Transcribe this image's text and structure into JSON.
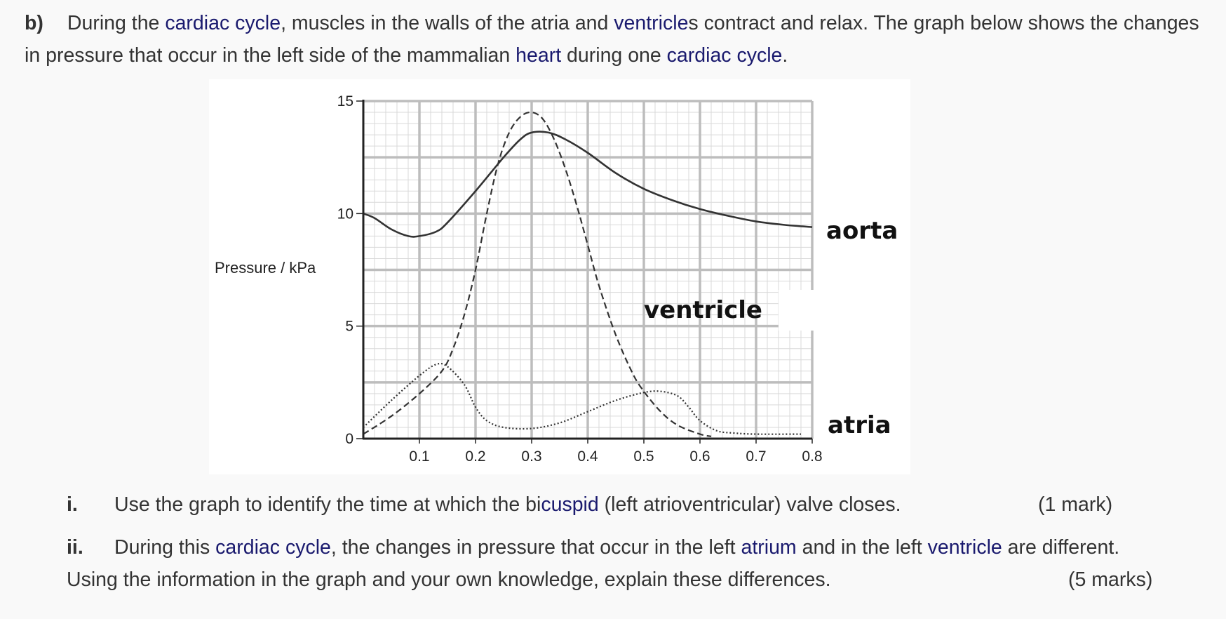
{
  "intro": {
    "label": "b)",
    "p1": "During the ",
    "l1": "cardiac cycle",
    "p2": ", muscles in the walls of the atria and ",
    "l2": "ventricle",
    "p3": "s contract and relax. The graph below shows the changes in pressure that occur in the left side of the mammalian ",
    "l3": "heart",
    "p4": " during one ",
    "l4": "cardiac cycle",
    "p5": "."
  },
  "chart_data": {
    "type": "line",
    "title": "",
    "xlabel": "",
    "ylabel": "Pressure / kPa",
    "xlim": [
      0,
      0.8
    ],
    "ylim": [
      0,
      15
    ],
    "xticks": [
      "0.1",
      "0.2",
      "0.3",
      "0.4",
      "0.5",
      "0.6",
      "0.7",
      "0.8"
    ],
    "yticks": [
      "0",
      "5",
      "10",
      "15"
    ],
    "grid": true,
    "series": [
      {
        "name": "aorta",
        "style": "solid",
        "x": [
          0,
          0.02,
          0.05,
          0.08,
          0.1,
          0.13,
          0.15,
          0.2,
          0.25,
          0.28,
          0.3,
          0.33,
          0.36,
          0.4,
          0.45,
          0.5,
          0.55,
          0.6,
          0.65,
          0.7,
          0.75,
          0.8
        ],
        "y": [
          10,
          9.8,
          9.3,
          9.0,
          9.0,
          9.2,
          9.6,
          11.0,
          12.5,
          13.3,
          13.6,
          13.6,
          13.3,
          12.7,
          11.8,
          11.1,
          10.6,
          10.2,
          9.9,
          9.65,
          9.5,
          9.4
        ]
      },
      {
        "name": "ventricle",
        "style": "dashed",
        "x": [
          0,
          0.05,
          0.1,
          0.14,
          0.16,
          0.18,
          0.2,
          0.22,
          0.24,
          0.26,
          0.28,
          0.3,
          0.32,
          0.34,
          0.36,
          0.38,
          0.4,
          0.42,
          0.45,
          0.48,
          0.5,
          0.53,
          0.56,
          0.6,
          0.62
        ],
        "y": [
          0.2,
          1.0,
          2.0,
          3.0,
          4.0,
          5.5,
          7.5,
          10.0,
          12.2,
          13.6,
          14.3,
          14.5,
          14.2,
          13.3,
          12.0,
          10.4,
          8.6,
          6.8,
          4.6,
          2.9,
          2.1,
          1.2,
          0.6,
          0.2,
          0.1
        ]
      },
      {
        "name": "atria",
        "style": "dotted",
        "x": [
          0,
          0.05,
          0.1,
          0.13,
          0.15,
          0.18,
          0.2,
          0.22,
          0.25,
          0.3,
          0.35,
          0.4,
          0.45,
          0.5,
          0.53,
          0.56,
          0.58,
          0.6,
          0.63,
          0.66,
          0.7,
          0.78
        ],
        "y": [
          0.5,
          1.7,
          2.8,
          3.3,
          3.2,
          2.4,
          1.4,
          0.8,
          0.5,
          0.45,
          0.7,
          1.2,
          1.7,
          2.05,
          2.1,
          1.9,
          1.4,
          0.8,
          0.35,
          0.25,
          0.2,
          0.2
        ]
      }
    ],
    "annotations": [
      "aorta",
      "ventricle",
      "atria"
    ]
  },
  "questions": [
    {
      "num": "i.",
      "text": "Use the graph to identify the time at which the bi",
      "link": "cuspid",
      "text2": " (left atrioventricular) valve closes.",
      "marks": "(1 mark)"
    },
    {
      "num": "ii.",
      "text": "During this ",
      "link": "cardiac cycle",
      "text2": ", the changes in pressure that occur in the left ",
      "link2": "atrium",
      "text3": " and in the left ",
      "link3": "ventricle",
      "text4": " are different.  Using the information in the graph and your own knowledge, explain these differences.",
      "marks": "(5 marks)"
    }
  ]
}
